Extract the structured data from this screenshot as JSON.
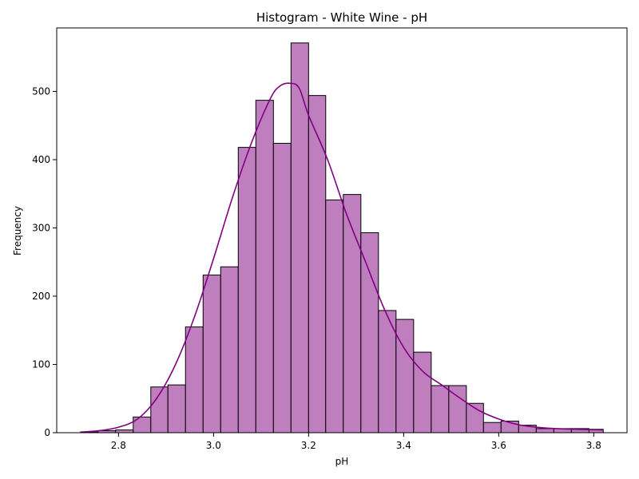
{
  "chart_data": {
    "type": "bar",
    "subtype": "histogram_with_kde",
    "title": "Histogram - White Wine - pH",
    "xlabel": "pH",
    "ylabel": "Frequency",
    "xlim": [
      2.67,
      3.87
    ],
    "ylim": [
      0,
      593
    ],
    "xticks": [
      2.8,
      3.0,
      3.2,
      3.4,
      3.6,
      3.8
    ],
    "xtick_labels": [
      "2.8",
      "3.0",
      "3.2",
      "3.4",
      "3.6",
      "3.8"
    ],
    "yticks": [
      0,
      100,
      200,
      300,
      400,
      500
    ],
    "ytick_labels": [
      "0",
      "100",
      "200",
      "300",
      "400",
      "500"
    ],
    "grid": false,
    "bar_color": "#bf7fbf",
    "edge_color": "#000000",
    "kde_color": "#800080",
    "bins": [
      {
        "x0": 2.72,
        "x1": 2.757,
        "count": 1
      },
      {
        "x0": 2.757,
        "x1": 2.794,
        "count": 3
      },
      {
        "x0": 2.794,
        "x1": 2.831,
        "count": 4
      },
      {
        "x0": 2.831,
        "x1": 2.868,
        "count": 23
      },
      {
        "x0": 2.868,
        "x1": 2.904,
        "count": 67
      },
      {
        "x0": 2.904,
        "x1": 2.941,
        "count": 70
      },
      {
        "x0": 2.941,
        "x1": 2.978,
        "count": 155
      },
      {
        "x0": 2.978,
        "x1": 3.015,
        "count": 231
      },
      {
        "x0": 3.015,
        "x1": 3.052,
        "count": 243
      },
      {
        "x0": 3.052,
        "x1": 3.089,
        "count": 418
      },
      {
        "x0": 3.089,
        "x1": 3.126,
        "count": 487
      },
      {
        "x0": 3.126,
        "x1": 3.163,
        "count": 424
      },
      {
        "x0": 3.163,
        "x1": 3.2,
        "count": 571
      },
      {
        "x0": 3.2,
        "x1": 3.236,
        "count": 494
      },
      {
        "x0": 3.236,
        "x1": 3.273,
        "count": 341
      },
      {
        "x0": 3.273,
        "x1": 3.31,
        "count": 349
      },
      {
        "x0": 3.31,
        "x1": 3.347,
        "count": 293
      },
      {
        "x0": 3.347,
        "x1": 3.384,
        "count": 179
      },
      {
        "x0": 3.384,
        "x1": 3.421,
        "count": 166
      },
      {
        "x0": 3.421,
        "x1": 3.458,
        "count": 118
      },
      {
        "x0": 3.458,
        "x1": 3.495,
        "count": 69
      },
      {
        "x0": 3.495,
        "x1": 3.532,
        "count": 69
      },
      {
        "x0": 3.532,
        "x1": 3.568,
        "count": 43
      },
      {
        "x0": 3.568,
        "x1": 3.605,
        "count": 15
      },
      {
        "x0": 3.605,
        "x1": 3.642,
        "count": 17
      },
      {
        "x0": 3.642,
        "x1": 3.679,
        "count": 11
      },
      {
        "x0": 3.679,
        "x1": 3.716,
        "count": 6
      },
      {
        "x0": 3.716,
        "x1": 3.753,
        "count": 6
      },
      {
        "x0": 3.753,
        "x1": 3.79,
        "count": 6
      },
      {
        "x0": 3.79,
        "x1": 3.82,
        "count": 5
      }
    ],
    "kde": {
      "x": [
        2.72,
        2.76,
        2.8,
        2.84,
        2.88,
        2.92,
        2.96,
        3.0,
        3.04,
        3.08,
        3.12,
        3.14,
        3.16,
        3.18,
        3.2,
        3.24,
        3.28,
        3.32,
        3.36,
        3.4,
        3.44,
        3.48,
        3.52,
        3.56,
        3.6,
        3.64,
        3.68,
        3.72,
        3.76,
        3.82
      ],
      "y": [
        1,
        3,
        8,
        20,
        50,
        100,
        170,
        255,
        345,
        425,
        490,
        508,
        512,
        505,
        465,
        400,
        320,
        250,
        180,
        125,
        90,
        70,
        50,
        32,
        20,
        12,
        8,
        6,
        5,
        4
      ]
    }
  }
}
